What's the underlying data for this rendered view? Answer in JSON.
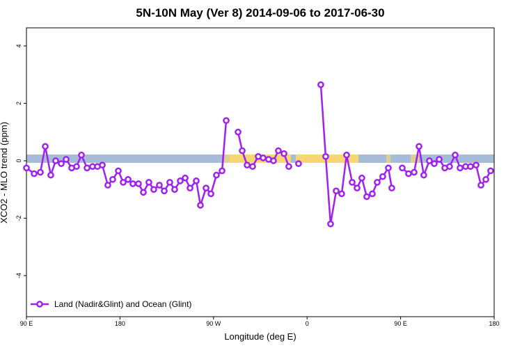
{
  "chart_data": {
    "type": "line",
    "title": "5N-10N May (Ver 8)   2014-09-06 to 2017-06-30",
    "x_label": "Longitude (deg E)",
    "y_label": "XCO2 - MLO trend (ppm)",
    "xlim": [
      90,
      540
    ],
    "ylim": [
      -5.43,
      4.63
    ],
    "xticks": [
      {
        "value": 90,
        "label": "90 E"
      },
      180,
      {
        "value": 270,
        "label": "90 W"
      },
      {
        "value": 360,
        "label": "0"
      },
      {
        "value": 450,
        "label": "90 E"
      },
      {
        "value": 540,
        "label": "180"
      }
    ],
    "yticks": [
      4,
      2,
      0,
      -2,
      -4
    ],
    "legend": "bottom-left",
    "series": [
      {
        "name": "Land (Nadir&Glint) and Ocean (Glint)",
        "color": "#a020f0",
        "x": [
          90,
          97.4,
          103.4,
          108.1,
          113.4,
          118.1,
          123.5,
          128.2,
          133.5,
          138.2,
          142.9,
          148.3,
          153.6,
          158.3,
          163,
          168.3,
          173,
          178.4,
          183.1,
          187.8,
          192.4,
          197.8,
          202.5,
          207.8,
          212.5,
          217.9,
          222.6,
          227.9,
          232.6,
          238,
          242.7,
          247.4,
          253.4,
          257.4,
          262.8,
          267.5,
          272.8,
          278.2,
          282.2,
          288,
          293.6,
          297.6,
          302.3,
          307.6,
          313,
          317.7,
          323,
          327.7,
          332.4,
          337.8,
          342.4,
          347,
          351.8,
          362,
          373.2,
          377.9,
          382.6,
          388,
          393.3,
          398,
          403.4,
          408.1,
          412.7,
          417.4,
          422.8,
          427.5,
          432.8,
          438.2,
          441.5,
          446,
          451.6,
          457.6,
          463,
          467.7,
          472.3,
          477.7,
          482.4,
          487.1,
          492.5,
          497.1,
          502.5,
          507.2,
          512.5,
          517.2,
          522.6,
          527.3,
          532,
          536.6
        ],
        "values": [
          -0.25,
          -0.45,
          -0.4,
          0.5,
          -0.5,
          0.0,
          -0.1,
          0.05,
          -0.25,
          -0.2,
          0.2,
          -0.25,
          -0.2,
          -0.2,
          -0.15,
          -0.85,
          -0.65,
          -0.35,
          -0.75,
          -0.65,
          -0.8,
          -0.8,
          -1.1,
          -0.75,
          -1.0,
          -0.85,
          -1.05,
          -0.75,
          -1.0,
          -0.7,
          -0.6,
          -0.95,
          -0.7,
          -1.55,
          -0.95,
          -1.15,
          -0.5,
          -0.35,
          1.4,
          null,
          1.0,
          0.35,
          -0.15,
          -0.2,
          0.15,
          0.1,
          0.05,
          0.0,
          0.35,
          0.25,
          -0.2,
          null,
          -0.1,
          null,
          2.65,
          0.15,
          -2.2,
          -1.05,
          -1.15,
          0.2,
          -0.75,
          -0.95,
          -0.6,
          -1.25,
          -1.15,
          -0.75,
          -0.55,
          -0.25,
          -0.95,
          null,
          -0.25,
          -0.45,
          -0.4,
          0.5,
          -0.5,
          0.0,
          -0.1,
          0.05,
          -0.25,
          -0.2,
          0.2,
          -0.25,
          -0.2,
          -0.2,
          -0.15,
          -0.85,
          -0.65,
          -0.35
        ]
      }
    ]
  }
}
